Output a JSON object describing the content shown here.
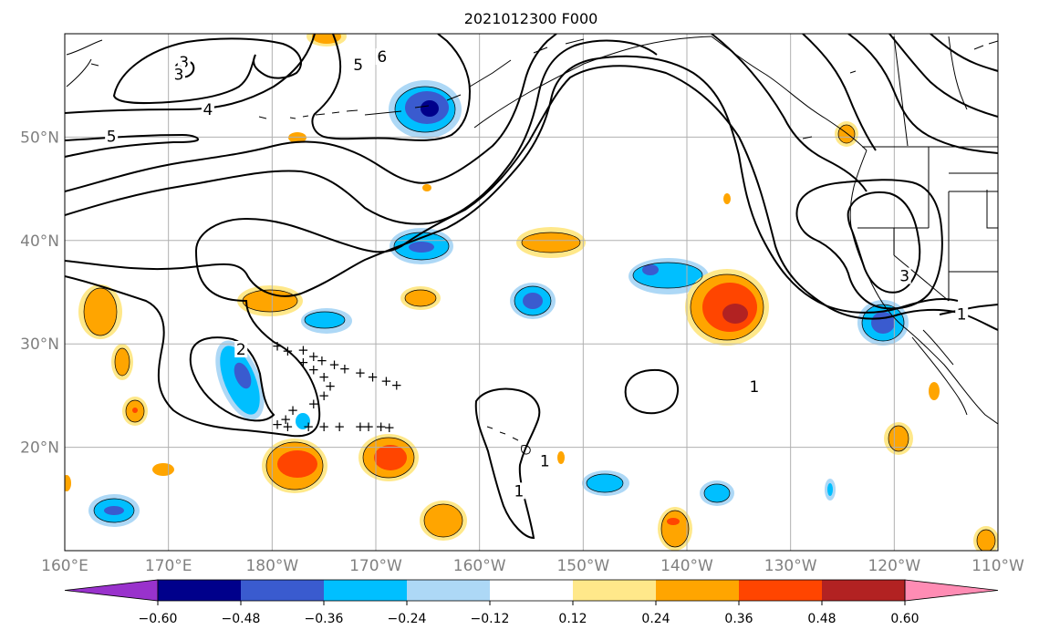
{
  "title": "2021012300 F000",
  "map": {
    "lon_range": [
      160,
      250
    ],
    "lat_range": [
      10,
      60
    ],
    "lon_ticks": [
      {
        "lon": 160,
        "label": "160°E"
      },
      {
        "lon": 170,
        "label": "170°E"
      },
      {
        "lon": 180,
        "label": "180°W"
      },
      {
        "lon": 190,
        "label": "170°W"
      },
      {
        "lon": 200,
        "label": "160°W"
      },
      {
        "lon": 210,
        "label": "150°W"
      },
      {
        "lon": 220,
        "label": "140°W"
      },
      {
        "lon": 230,
        "label": "130°W"
      },
      {
        "lon": 240,
        "label": "120°W"
      },
      {
        "lon": 250,
        "label": "110°W"
      }
    ],
    "lat_ticks": [
      {
        "lat": 20,
        "label": "20°N"
      },
      {
        "lat": 30,
        "label": "30°N"
      },
      {
        "lat": 40,
        "label": "40°N"
      },
      {
        "lat": 50,
        "label": "50°N"
      }
    ],
    "grid": true,
    "colors": {
      "grid": "#b0b0b0",
      "tick_label": "#808080",
      "contour": "#000000"
    }
  },
  "colorbar": {
    "levels": [
      "−0.60",
      "−0.48",
      "−0.36",
      "−0.24",
      "−0.12",
      "0.12",
      "0.24",
      "0.36",
      "0.48",
      "0.60"
    ],
    "colors": [
      "#9932CC",
      "#00008B",
      "#3A5BCF",
      "#00BFFF",
      "#ADD8F6",
      "#FFFFFF",
      "#FFE88A",
      "#FFA500",
      "#FF4500",
      "#B22222",
      "#FF8CB4"
    ],
    "extend": "both"
  },
  "contour_labels": [
    {
      "text": "3",
      "lon": 171.5,
      "lat": 57.2
    },
    {
      "text": "3",
      "lon": 171.0,
      "lat": 56.0
    },
    {
      "text": "4",
      "lon": 173.8,
      "lat": 52.6
    },
    {
      "text": "5",
      "lon": 164.5,
      "lat": 50.0
    },
    {
      "text": "5",
      "lon": 188.3,
      "lat": 56.9
    },
    {
      "text": "6",
      "lon": 190.6,
      "lat": 57.7
    },
    {
      "text": "2",
      "lon": 177.0,
      "lat": 29.4
    },
    {
      "text": "1",
      "lon": 206.3,
      "lat": 18.6
    },
    {
      "text": "1",
      "lon": 203.8,
      "lat": 15.7
    },
    {
      "text": "1",
      "lon": 226.5,
      "lat": 25.8
    },
    {
      "text": "3",
      "lon": 241.0,
      "lat": 36.5
    },
    {
      "text": "1",
      "lon": 246.5,
      "lat": 32.8
    }
  ],
  "markers": {
    "symbol": "+",
    "points": [
      [
        180.5,
        29.8
      ],
      [
        181.5,
        29.3
      ],
      [
        183,
        29.4
      ],
      [
        184,
        28.8
      ],
      [
        184.8,
        28.4
      ],
      [
        183,
        28.2
      ],
      [
        184,
        27.5
      ],
      [
        186,
        28.0
      ],
      [
        187,
        27.6
      ],
      [
        188.5,
        27.2
      ],
      [
        189.7,
        26.8
      ],
      [
        191,
        26.4
      ],
      [
        192,
        26.0
      ],
      [
        185,
        26.8
      ],
      [
        185.6,
        25.9
      ],
      [
        185,
        25.0
      ],
      [
        184,
        24.2
      ],
      [
        182,
        23.6
      ],
      [
        181.3,
        22.7
      ],
      [
        180.5,
        22.2
      ],
      [
        181.5,
        22.0
      ],
      [
        183.5,
        22.0
      ],
      [
        185,
        22.0
      ],
      [
        186.5,
        22.0
      ],
      [
        188.5,
        22.0
      ],
      [
        189.3,
        22.0
      ],
      [
        190.5,
        22.0
      ],
      [
        191.3,
        21.9
      ]
    ]
  }
}
